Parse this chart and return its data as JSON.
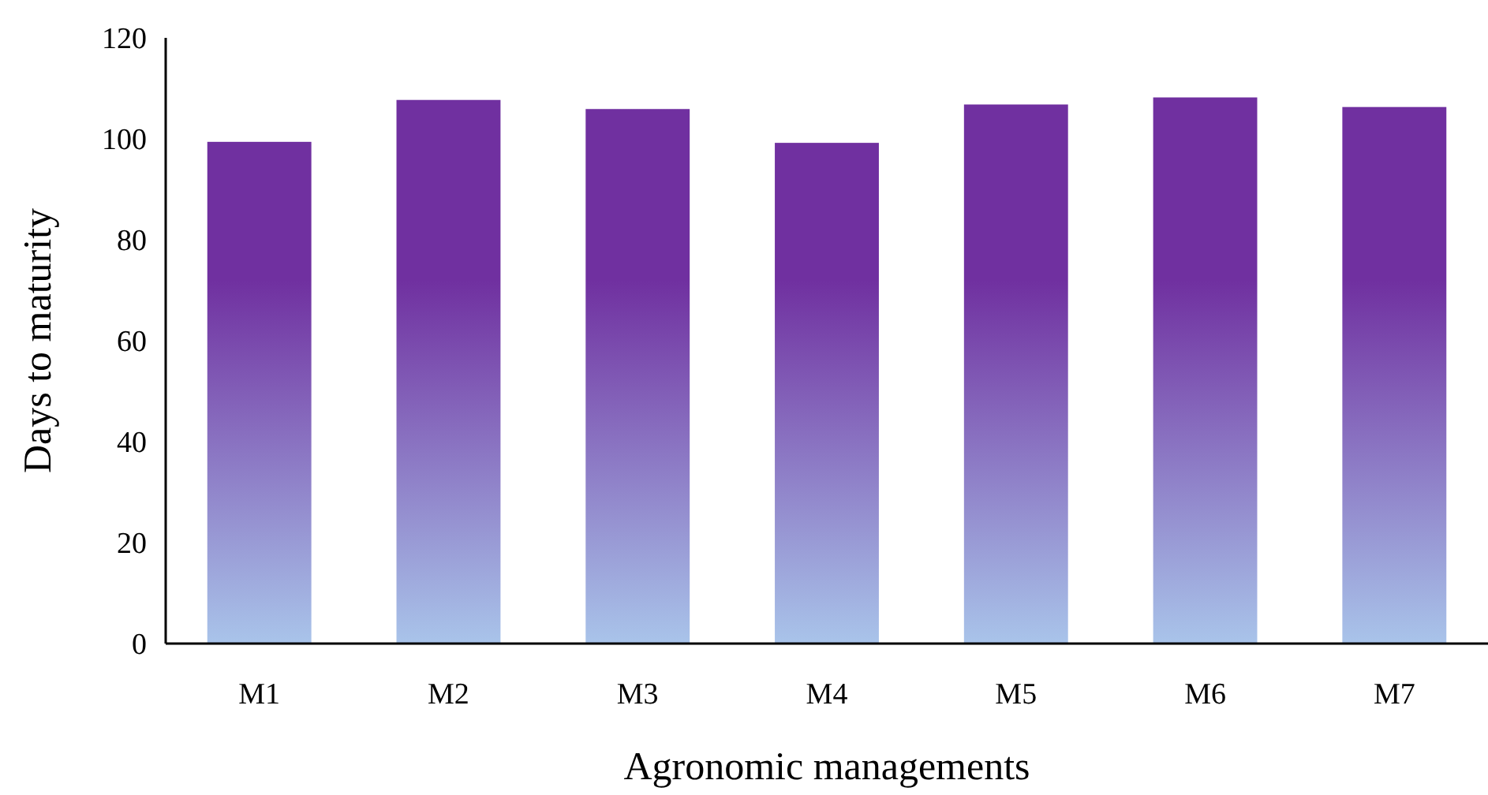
{
  "chart_data": {
    "type": "bar",
    "xlabel": "Agronomic managements",
    "ylabel": "Days to maturity",
    "categories": [
      "M1",
      "M2",
      "M3",
      "M4",
      "M5",
      "M6",
      "M7"
    ],
    "values": [
      99.4,
      107.7,
      105.9,
      99.2,
      106.8,
      108.2,
      106.3
    ],
    "color": "#7030a0",
    "ylim": [
      0,
      120
    ],
    "yticks": [
      0,
      20,
      40,
      60,
      80,
      100,
      120
    ],
    "grid": false
  }
}
